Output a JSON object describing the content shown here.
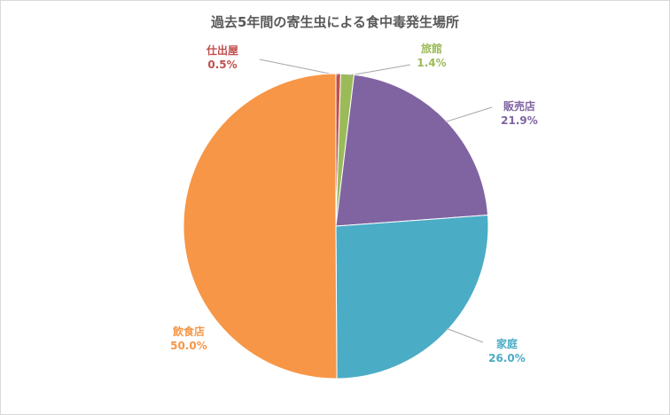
{
  "chart_data": {
    "type": "pie",
    "title": "過去5年間の寄生虫による食中毒発生場所",
    "categories": [
      "仕出屋",
      "旅館",
      "販売店",
      "家庭",
      "飲食店"
    ],
    "values": [
      0.5,
      1.4,
      21.9,
      26.0,
      50.0
    ],
    "value_labels": [
      "0.5%",
      "1.4%",
      "21.9%",
      "26.0%",
      "50.0%"
    ],
    "colors": [
      "#c0504d",
      "#9bbb59",
      "#8064a2",
      "#4bacc6",
      "#f79646"
    ],
    "legend": "none",
    "data_labels": "outside with leader lines"
  }
}
